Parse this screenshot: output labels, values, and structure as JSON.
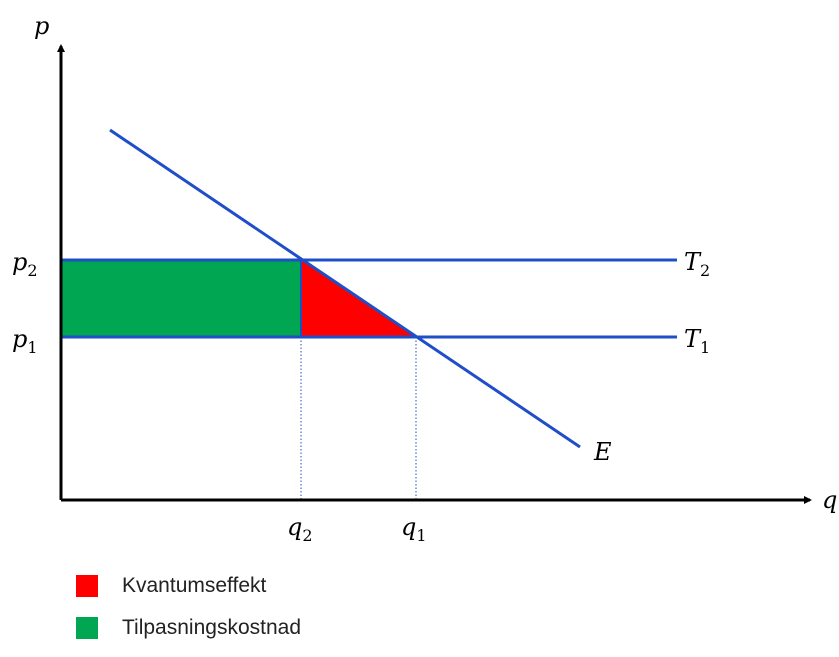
{
  "colors": {
    "line": "#1f4fc8",
    "axis": "#000000",
    "tilpasning": "#00a651",
    "kvantum": "#ff0000"
  },
  "axes": {
    "y_label": "p",
    "x_label": "q"
  },
  "price_labels": {
    "p2": {
      "base": "p",
      "sub": "2"
    },
    "p1": {
      "base": "p",
      "sub": "1"
    }
  },
  "quantity_labels": {
    "q2": {
      "base": "q",
      "sub": "2"
    },
    "q1": {
      "base": "q",
      "sub": "1"
    }
  },
  "curve_labels": {
    "T2": {
      "base": "T",
      "sub": "2"
    },
    "T1": {
      "base": "T",
      "sub": "1"
    },
    "E": "E"
  },
  "legend": [
    {
      "label": "Kvantumseffekt",
      "color": "#ff0000"
    },
    {
      "label": "Tilpasningskostnad",
      "color": "#00a651"
    }
  ]
}
